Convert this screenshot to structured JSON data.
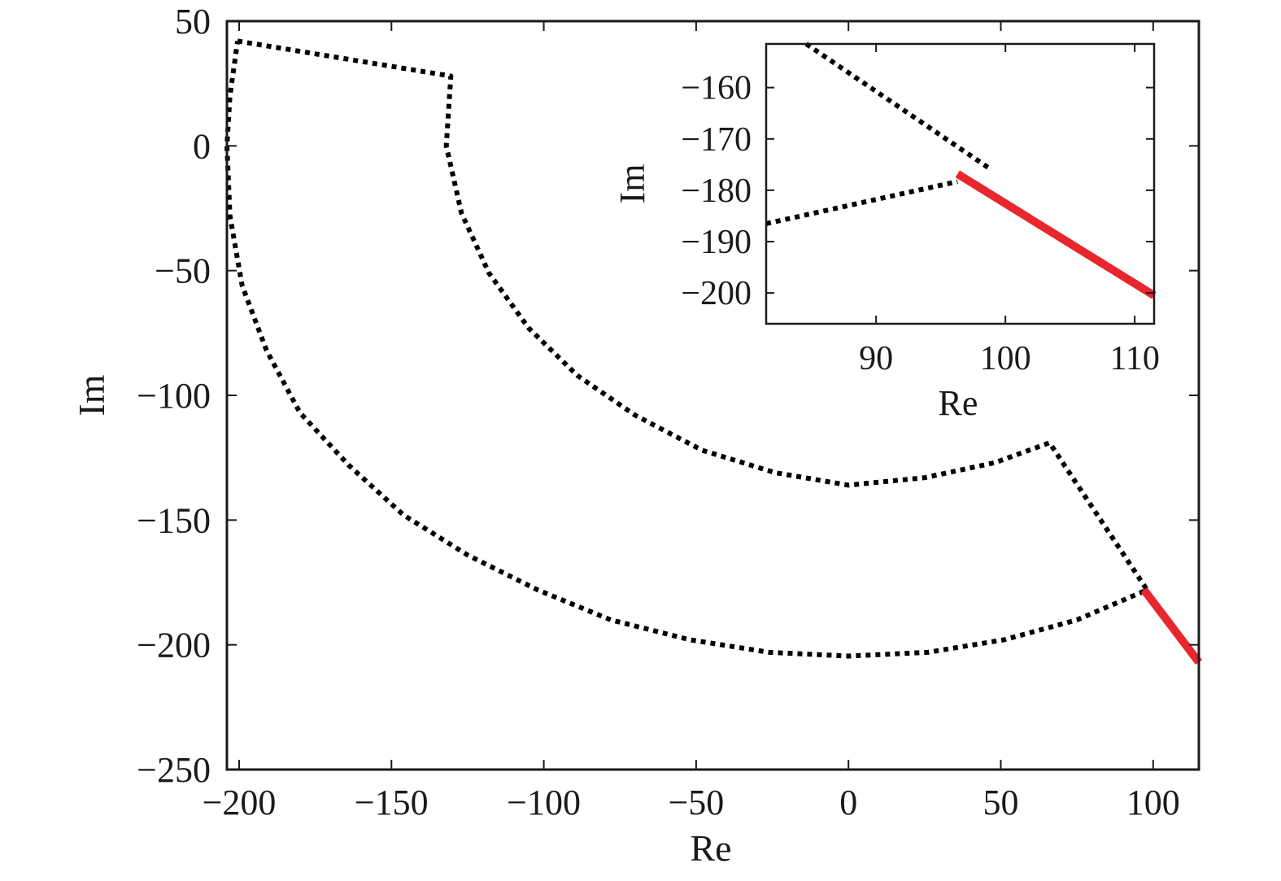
{
  "chart_data": [
    {
      "id": "main",
      "type": "line",
      "title": "",
      "xlabel": "Re",
      "ylabel": "Im",
      "xlim": [
        -204,
        115
      ],
      "ylim": [
        -250,
        50
      ],
      "xticks": [
        -200,
        -150,
        -100,
        -50,
        0,
        50,
        100
      ],
      "yticks": [
        -250,
        -200,
        -150,
        -100,
        -50,
        0,
        50
      ],
      "xtick_labels": [
        "−200",
        "−150",
        "−100",
        "−50",
        "0",
        "50",
        "100"
      ],
      "ytick_labels": [
        "−250",
        "−200",
        "−150",
        "−100",
        "−50",
        "0",
        "50"
      ],
      "grid": false,
      "series": [
        {
          "style": "dotted",
          "color": "#000000",
          "points": [
            [
              -200.5,
              42
            ],
            [
              -130.5,
              28
            ],
            [
              -132,
              0
            ],
            [
              -127,
              -27
            ],
            [
              -118,
              -51
            ],
            [
              -105,
              -73
            ],
            [
              -89,
              -92
            ],
            [
              -70,
              -108
            ],
            [
              -48,
              -122
            ],
            [
              -24,
              -131
            ],
            [
              0,
              -136
            ],
            [
              25,
              -133
            ],
            [
              48,
              -127
            ],
            [
              66,
              -119
            ],
            [
              98,
              -178
            ],
            [
              75,
              -190
            ],
            [
              51,
              -198
            ],
            [
              26,
              -203
            ],
            [
              0,
              -204.5
            ],
            [
              -26,
              -203
            ],
            [
              -52,
              -198
            ],
            [
              -78,
              -190
            ],
            [
              -102,
              -178
            ],
            [
              -125,
              -164
            ],
            [
              -146,
              -148
            ],
            [
              -164,
              -128
            ],
            [
              -180,
              -107
            ],
            [
              -191,
              -82
            ],
            [
              -199,
              -56
            ],
            [
              -203,
              -28
            ],
            [
              -204,
              0
            ],
            [
              -203,
              20
            ],
            [
              -200.5,
              42
            ]
          ]
        },
        {
          "style": "solid",
          "color": "#e8262e",
          "points": [
            [
              97,
              -178
            ],
            [
              115,
              -207
            ]
          ]
        }
      ]
    },
    {
      "id": "inset",
      "type": "line",
      "title": "",
      "xlabel": "Re",
      "ylabel": "Im",
      "xlim": [
        81.5,
        111.5
      ],
      "ylim": [
        -206,
        -151.5
      ],
      "xticks": [
        90,
        100,
        110
      ],
      "yticks": [
        -160,
        -170,
        -180,
        -190,
        -200
      ],
      "xtick_labels": [
        "90",
        "100",
        "110"
      ],
      "ytick_labels": [
        "−160",
        "−170",
        "−180",
        "−190",
        "−200"
      ],
      "grid": false,
      "series": [
        {
          "style": "dotted",
          "color": "#000000",
          "points": [
            [
              84.6,
              -151.5
            ],
            [
              98.8,
              -175.8
            ]
          ]
        },
        {
          "style": "dotted",
          "color": "#000000",
          "points": [
            [
              81.5,
              -186.5
            ],
            [
              96.3,
              -178.3
            ]
          ]
        },
        {
          "style": "solid",
          "color": "#e8262e",
          "points": [
            [
              96.3,
              -176.8
            ],
            [
              111.5,
              -200.5
            ]
          ]
        }
      ]
    }
  ]
}
